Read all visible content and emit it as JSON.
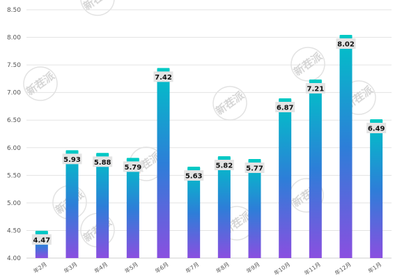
{
  "chart_data": {
    "type": "bar",
    "categories": [
      "年2月",
      "年3月",
      "年4月",
      "年5月",
      "年6月",
      "年7月",
      "年8月",
      "年9月",
      "年10月",
      "年11月",
      "年12月",
      "年1月"
    ],
    "values": [
      4.47,
      5.93,
      5.88,
      5.79,
      7.42,
      5.63,
      5.82,
      5.77,
      6.87,
      7.21,
      8.02,
      6.49
    ],
    "value_labels": [
      "4.47",
      "5.93",
      "5.88",
      "5.79",
      "7.42",
      "5.63",
      "5.82",
      "5.77",
      "6.87",
      "7.21",
      "8.02",
      "6.49"
    ],
    "yticks": [
      "4.00",
      "4.50",
      "5.00",
      "5.50",
      "6.00",
      "6.50",
      "7.00",
      "7.50",
      "8.00",
      "8.50"
    ],
    "ylim": [
      4.0,
      8.5
    ],
    "grid": true,
    "legend": "none",
    "colors": {
      "bar_top": "#00c2c7",
      "bar_mid": "#2d7ed8",
      "bar_bottom": "#8a4fe0",
      "cap": "#00c9c4",
      "label_bg": "#e4e4e4",
      "grid": "#e3e3e3"
    }
  },
  "watermark": {
    "text": "新茬派"
  }
}
